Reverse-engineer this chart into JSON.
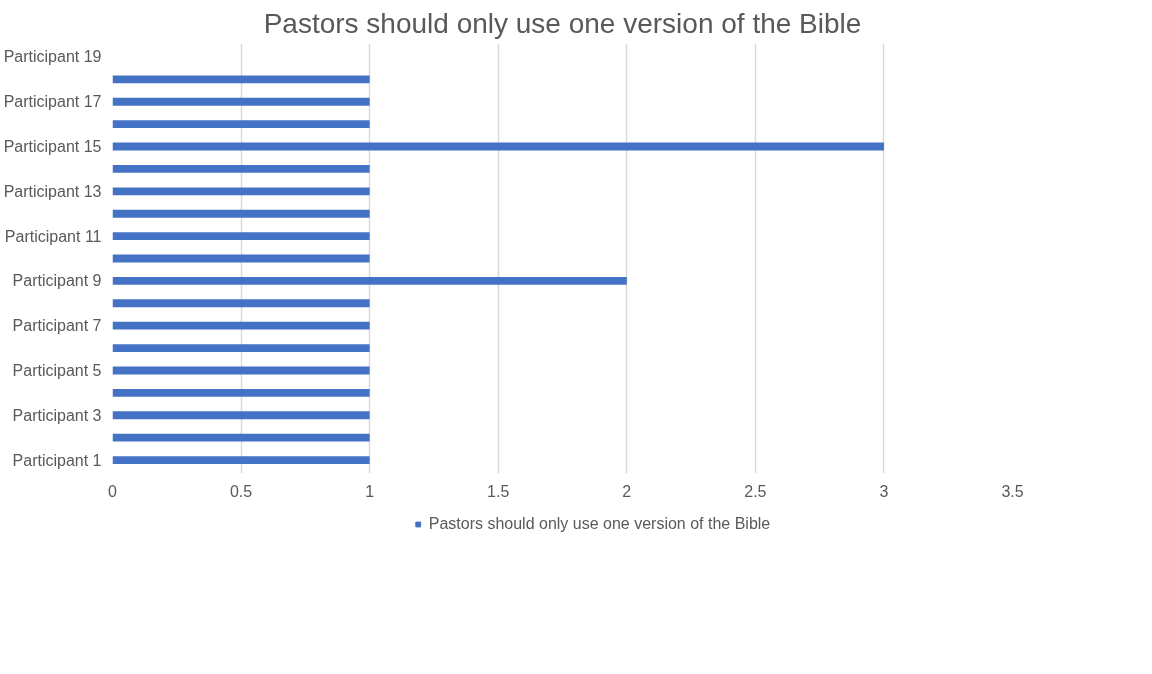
{
  "chart_data": {
    "type": "bar",
    "orientation": "horizontal",
    "title": "Pastors should only use one version of the Bible",
    "categories": [
      "Participant 19",
      null,
      "Participant 17",
      null,
      "Participant 15",
      null,
      "Participant 13",
      null,
      "Participant 11",
      null,
      "Participant 9",
      null,
      "Participant 7",
      null,
      "Participant 5",
      null,
      "Participant 3",
      null,
      "Participant 1"
    ],
    "series": [
      {
        "name": "Pastors should only use one version of the Bible",
        "color": "#4472c4",
        "values": [
          0,
          1,
          1,
          1,
          3,
          1,
          1,
          1,
          1,
          1,
          2,
          1,
          1,
          1,
          1,
          1,
          1,
          1,
          1
        ]
      }
    ],
    "xlim": [
      0,
      3.5
    ],
    "xticks": [
      0,
      0.5,
      1,
      1.5,
      2,
      2.5,
      3,
      3.5
    ],
    "grid": "x",
    "legend": "bottom"
  }
}
